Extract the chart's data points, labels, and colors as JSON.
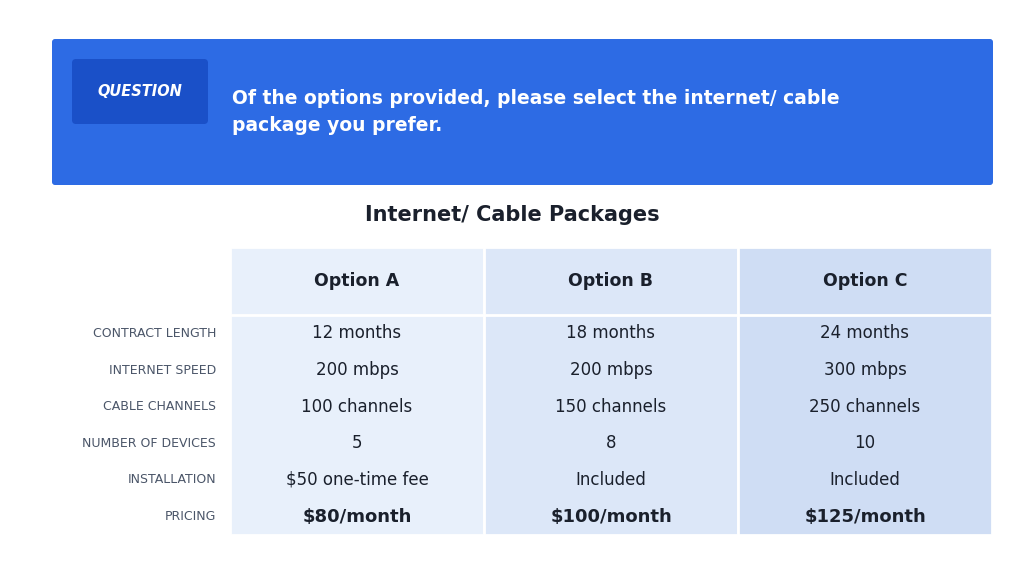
{
  "bg_color": "#ffffff",
  "header_bg": "#2d6be4",
  "question_label": "QUESTION",
  "question_text": "Of the options provided, please select the internet/ cable\npackage you prefer.",
  "table_title": "Internet/ Cable Packages",
  "col_headers": [
    "Option A",
    "Option B",
    "Option C"
  ],
  "row_labels": [
    "CONTRACT LENGTH",
    "INTERNET SPEED",
    "CABLE CHANNELS",
    "NUMBER OF DEVICES",
    "INSTALLATION",
    "PRICING"
  ],
  "col_a": [
    "12 months",
    "200 mbps",
    "100 channels",
    "5",
    "$50 one-time fee",
    "$80/month"
  ],
  "col_b": [
    "18 months",
    "200 mbps",
    "150 channels",
    "8",
    "Included",
    "$100/month"
  ],
  "col_c": [
    "24 months",
    "300 mbps",
    "250 channels",
    "10",
    "Included",
    "$125/month"
  ],
  "pricing_row_idx": 5,
  "col_a_bg": "#e8f0fb",
  "col_b_bg": "#dce7f8",
  "col_c_bg": "#cfddf4",
  "row_label_color": "#4a5568",
  "col_header_color": "#1a202c",
  "cell_text_color": "#1a202c"
}
